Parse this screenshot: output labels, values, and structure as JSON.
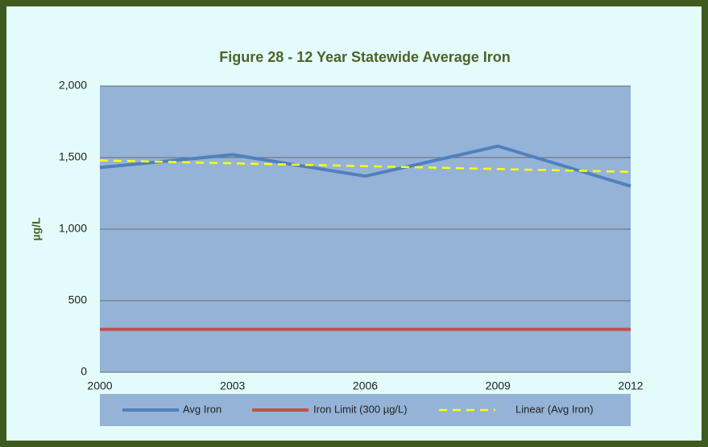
{
  "chart_data": {
    "type": "line",
    "title": "Figure 28 - 12 Year Statewide Average Iron",
    "y_label": "µg/L",
    "x": [
      2000,
      2003,
      2006,
      2009,
      2012
    ],
    "series": [
      {
        "name": "Avg Iron",
        "color": "#4f81bd",
        "line_style": "solid",
        "values": [
          1430,
          1520,
          1370,
          1580,
          1300
        ]
      },
      {
        "name": "Iron Limit (300 µg/L)",
        "color": "#c0504d",
        "line_style": "solid",
        "values": [
          300,
          300,
          300,
          300,
          300
        ]
      },
      {
        "name": "Linear (Avg Iron)",
        "color": "#ffff00",
        "line_style": "dashed",
        "values": [
          1480,
          1460,
          1440,
          1420,
          1400
        ]
      }
    ],
    "xlim": [
      2000,
      2012
    ],
    "xticks": [
      2000,
      2003,
      2006,
      2009,
      2012
    ],
    "ylim": [
      0,
      2000
    ],
    "yticks": [
      0,
      500,
      {
        "value": 1000,
        "label": "1,000"
      },
      {
        "value": 1500,
        "label": "1,500"
      },
      {
        "value": 2000,
        "label": "2,000"
      }
    ],
    "grid": true,
    "legend": "bottom"
  }
}
